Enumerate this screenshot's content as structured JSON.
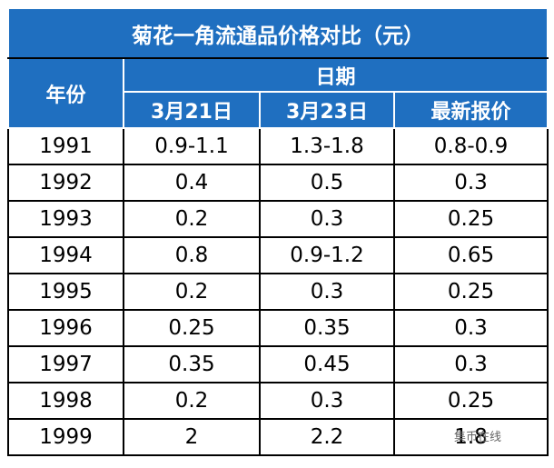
{
  "title": "菊花一角流通品价格对比（元）",
  "header": {
    "year_label": "年份",
    "date_label": "日期",
    "columns": [
      "3月21日",
      "3月23日",
      "最新报价"
    ]
  },
  "table": {
    "rows": [
      [
        "1991",
        "0.9-1.1",
        "1.3-1.8",
        "0.8-0.9"
      ],
      [
        "1992",
        "0.4",
        "0.5",
        "0.3"
      ],
      [
        "1993",
        "0.2",
        "0.3",
        "0.25"
      ],
      [
        "1994",
        "0.8",
        "0.9-1.2",
        "0.65"
      ],
      [
        "1995",
        "0.2",
        "0.3",
        "0.25"
      ],
      [
        "1996",
        "0.25",
        "0.35",
        "0.3"
      ],
      [
        "1997",
        "0.35",
        "0.45",
        "0.3"
      ],
      [
        "1998",
        "0.2",
        "0.3",
        "0.25"
      ],
      [
        "1999",
        "2",
        "2.2",
        "1.8"
      ]
    ]
  },
  "watermark": "集币在线"
}
